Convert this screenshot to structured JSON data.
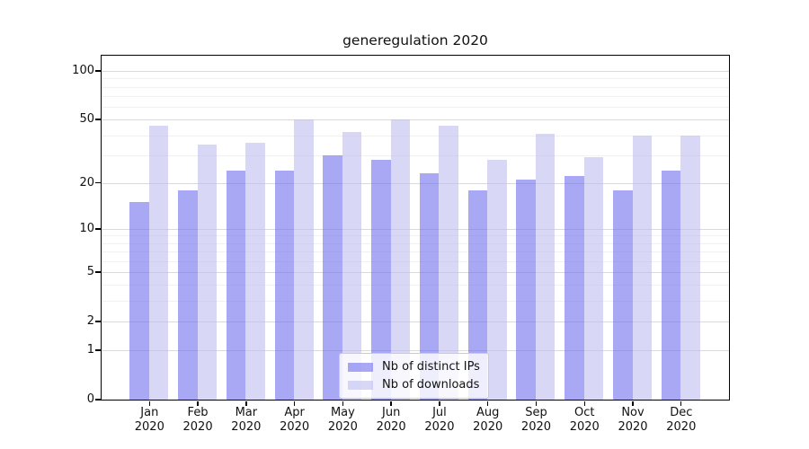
{
  "chart_data": {
    "type": "bar",
    "title": "generegulation 2020",
    "yscale": "log1p",
    "categories": [
      "Jan",
      "Feb",
      "Mar",
      "Apr",
      "May",
      "Jun",
      "Jul",
      "Aug",
      "Sep",
      "Oct",
      "Nov",
      "Dec"
    ],
    "x_year_label": "2020",
    "series": [
      {
        "name": "Nb of distinct IPs",
        "color": "#6e6eee",
        "alpha": 0.6,
        "values": [
          15,
          18,
          24,
          24,
          30,
          28,
          23,
          18,
          21,
          22,
          18,
          24
        ]
      },
      {
        "name": "Nb of downloads",
        "color": "#bebef0",
        "alpha": 0.6,
        "values": [
          46,
          35,
          36,
          50,
          42,
          50,
          46,
          28,
          41,
          29,
          40,
          40
        ]
      }
    ],
    "y_ticks": [
      0,
      1,
      2,
      5,
      10,
      20,
      50,
      100
    ],
    "y_minor_grid": [
      3,
      4,
      6,
      7,
      8,
      9,
      30,
      40,
      60,
      70,
      80,
      90
    ],
    "ylim": [
      0,
      124
    ],
    "grid": true,
    "legend_position": "lower center",
    "colors": {
      "major_grid": "#d9d9d9",
      "minor_grid": "#f1f1f1",
      "axis": "#000000",
      "text": "#111111"
    }
  }
}
